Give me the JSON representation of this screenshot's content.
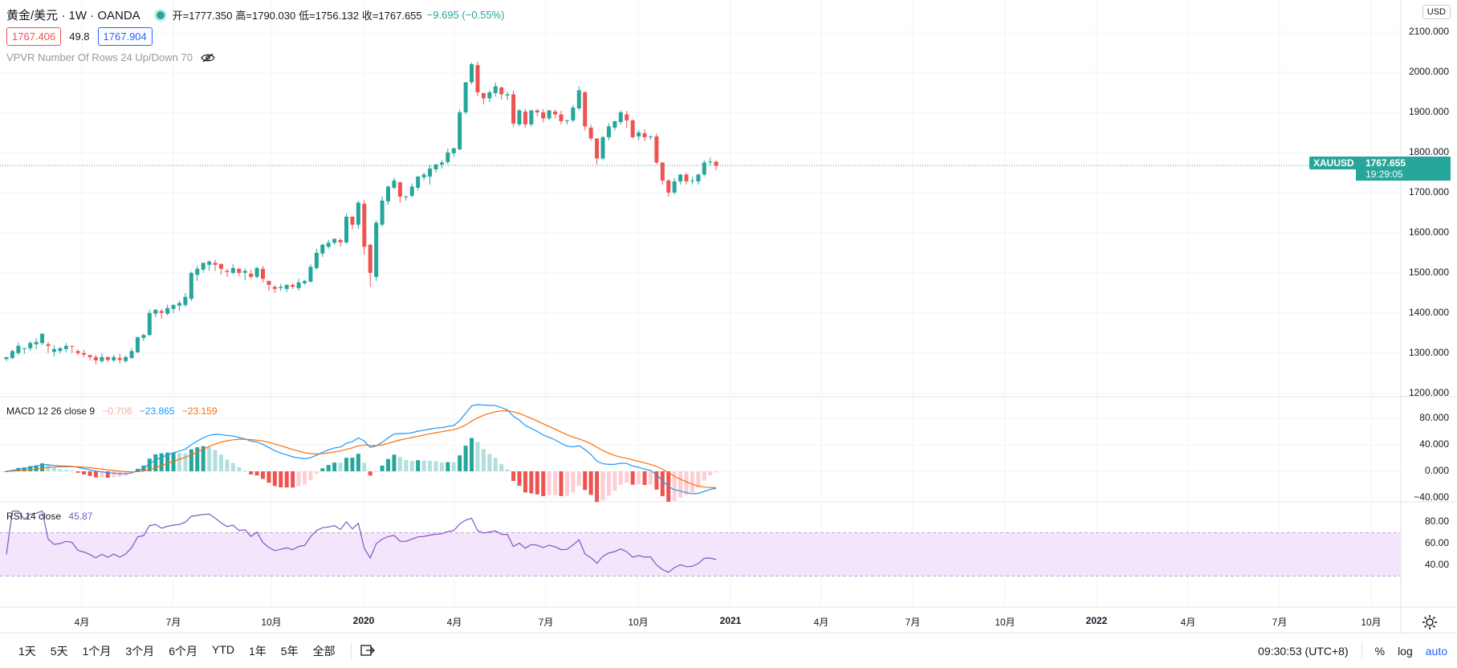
{
  "header": {
    "symbol": "黄金/美元 · 1W · OANDA",
    "open": "开=1777.350",
    "high": "高=1790.030",
    "low": "低=1756.132",
    "close": "收=1767.655",
    "change": "−9.695 (−0.55%)"
  },
  "bid_ask": {
    "bid": "1767.406",
    "spread": "49.8",
    "ask": "1767.904"
  },
  "vpvr_label": "VPVR Number Of Rows 24 Up/Down 70",
  "currency_button": "USD",
  "price_tag": {
    "symbol": "XAUUSD",
    "price": "1767.655",
    "countdown": "19:29:05"
  },
  "price_axis": [
    "2100.000",
    "2000.000",
    "1900.000",
    "1800.000",
    "1700.000",
    "1600.000",
    "1500.000",
    "1400.000",
    "1300.000",
    "1200.000"
  ],
  "macd": {
    "label": "MACD 12 26 close 9",
    "hist": "−0.706",
    "macd": "−23.865",
    "signal": "−23.159",
    "axis": [
      "80.000",
      "40.000",
      "0.000",
      "−40.000"
    ]
  },
  "rsi": {
    "label": "RSI 14 close",
    "value": "45.87",
    "axis": [
      "80.00",
      "60.00",
      "40.00"
    ]
  },
  "time_axis": [
    {
      "t": "4月",
      "year": false
    },
    {
      "t": "7月",
      "year": false
    },
    {
      "t": "10月",
      "year": false
    },
    {
      "t": "2020",
      "year": true
    },
    {
      "t": "4月",
      "year": false
    },
    {
      "t": "7月",
      "year": false
    },
    {
      "t": "10月",
      "year": false
    },
    {
      "t": "2021",
      "year": true
    },
    {
      "t": "4月",
      "year": false
    },
    {
      "t": "7月",
      "year": false
    },
    {
      "t": "10月",
      "year": false
    },
    {
      "t": "2022",
      "year": true
    },
    {
      "t": "4月",
      "year": false
    },
    {
      "t": "7月",
      "year": false
    },
    {
      "t": "10月",
      "year": false
    }
  ],
  "timeframes": [
    "1天",
    "5天",
    "1个月",
    "3个月",
    "6个月",
    "YTD",
    "1年",
    "5年",
    "全部"
  ],
  "bottom_right": {
    "clock": "09:30:53 (UTC+8)",
    "percent": "%",
    "log": "log",
    "auto": "auto"
  },
  "colors": {
    "up": "#26a69a",
    "down": "#ef5350",
    "macd_line": "#2196f3",
    "signal_line": "#ff6d00",
    "rsi_line": "#7e57c2",
    "rsi_band": "#f3e5fc"
  },
  "chart_data": {
    "type": "candlestick",
    "interval": "1W",
    "candles_ohc": [
      [
        1285,
        1290,
        1280
      ],
      [
        1288,
        1305,
        1284
      ],
      [
        1300,
        1318,
        1295
      ],
      [
        1310,
        1312,
        1298
      ],
      [
        1312,
        1325,
        1305
      ],
      [
        1322,
        1328,
        1310
      ],
      [
        1325,
        1348,
        1320
      ],
      [
        1322,
        1318,
        1300
      ],
      [
        1303,
        1310,
        1292
      ],
      [
        1305,
        1312,
        1300
      ],
      [
        1310,
        1318,
        1302
      ],
      [
        1318,
        1316,
        1300
      ],
      [
        1305,
        1300,
        1295
      ],
      [
        1300,
        1296,
        1290
      ],
      [
        1295,
        1290,
        1282
      ],
      [
        1290,
        1282,
        1272
      ],
      [
        1280,
        1290,
        1275
      ],
      [
        1290,
        1283,
        1278
      ],
      [
        1282,
        1290,
        1278
      ],
      [
        1288,
        1283,
        1274
      ],
      [
        1280,
        1290,
        1276
      ],
      [
        1288,
        1305,
        1285
      ],
      [
        1302,
        1340,
        1300
      ],
      [
        1338,
        1345,
        1330
      ],
      [
        1345,
        1400,
        1342
      ],
      [
        1398,
        1408,
        1390
      ],
      [
        1405,
        1400,
        1385
      ],
      [
        1398,
        1412,
        1394
      ],
      [
        1410,
        1420,
        1400
      ],
      [
        1418,
        1425,
        1405
      ],
      [
        1420,
        1440,
        1415
      ],
      [
        1435,
        1500,
        1430
      ],
      [
        1495,
        1510,
        1480
      ],
      [
        1508,
        1525,
        1500
      ],
      [
        1520,
        1528,
        1505
      ],
      [
        1525,
        1520,
        1505
      ],
      [
        1522,
        1510,
        1495
      ],
      [
        1505,
        1502,
        1490
      ],
      [
        1500,
        1512,
        1496
      ],
      [
        1510,
        1500,
        1492
      ],
      [
        1500,
        1505,
        1482
      ],
      [
        1498,
        1490,
        1485
      ],
      [
        1490,
        1512,
        1486
      ],
      [
        1510,
        1485,
        1475
      ],
      [
        1480,
        1470,
        1455
      ],
      [
        1465,
        1460,
        1450
      ],
      [
        1462,
        1465,
        1455
      ],
      [
        1460,
        1470,
        1452
      ],
      [
        1470,
        1465,
        1460
      ],
      [
        1462,
        1476,
        1456
      ],
      [
        1474,
        1480,
        1470
      ],
      [
        1478,
        1515,
        1475
      ],
      [
        1512,
        1550,
        1508
      ],
      [
        1548,
        1570,
        1540
      ],
      [
        1565,
        1575,
        1560
      ],
      [
        1575,
        1585,
        1570
      ],
      [
        1582,
        1576,
        1565
      ],
      [
        1576,
        1640,
        1572
      ],
      [
        1640,
        1620,
        1608
      ],
      [
        1620,
        1675,
        1610
      ],
      [
        1672,
        1565,
        1545
      ],
      [
        1570,
        1500,
        1465
      ],
      [
        1490,
        1625,
        1480
      ],
      [
        1620,
        1680,
        1615
      ],
      [
        1678,
        1715,
        1670
      ],
      [
        1712,
        1730,
        1708
      ],
      [
        1726,
        1690,
        1675
      ],
      [
        1690,
        1690,
        1680
      ],
      [
        1692,
        1715,
        1688
      ],
      [
        1712,
        1740,
        1705
      ],
      [
        1738,
        1745,
        1730
      ],
      [
        1740,
        1760,
        1720
      ],
      [
        1758,
        1770,
        1750
      ],
      [
        1770,
        1775,
        1760
      ],
      [
        1776,
        1800,
        1770
      ],
      [
        1798,
        1810,
        1790
      ],
      [
        1808,
        1900,
        1805
      ],
      [
        1900,
        1975,
        1895
      ],
      [
        1975,
        2020,
        1970
      ],
      [
        2018,
        1950,
        1940
      ],
      [
        1948,
        1935,
        1920
      ],
      [
        1935,
        1950,
        1925
      ],
      [
        1948,
        1965,
        1940
      ],
      [
        1962,
        1945,
        1932
      ],
      [
        1942,
        1945,
        1930
      ],
      [
        1945,
        1872,
        1865
      ],
      [
        1870,
        1905,
        1865
      ],
      [
        1902,
        1870,
        1862
      ],
      [
        1870,
        1905,
        1865
      ],
      [
        1905,
        1900,
        1890
      ],
      [
        1900,
        1885,
        1875
      ],
      [
        1885,
        1905,
        1880
      ],
      [
        1902,
        1895,
        1885
      ],
      [
        1895,
        1878,
        1870
      ],
      [
        1878,
        1880,
        1870
      ],
      [
        1880,
        1912,
        1875
      ],
      [
        1910,
        1955,
        1905
      ],
      [
        1950,
        1865,
        1855
      ],
      [
        1862,
        1835,
        1830
      ],
      [
        1835,
        1785,
        1770
      ],
      [
        1785,
        1838,
        1780
      ],
      [
        1838,
        1865,
        1830
      ],
      [
        1862,
        1878,
        1855
      ],
      [
        1876,
        1900,
        1870
      ],
      [
        1895,
        1880,
        1860
      ],
      [
        1880,
        1838,
        1835
      ],
      [
        1840,
        1850,
        1830
      ],
      [
        1848,
        1838,
        1828
      ],
      [
        1838,
        1840,
        1832
      ],
      [
        1840,
        1775,
        1770
      ],
      [
        1775,
        1730,
        1720
      ],
      [
        1730,
        1700,
        1690
      ],
      [
        1700,
        1728,
        1695
      ],
      [
        1728,
        1745,
        1720
      ],
      [
        1745,
        1728,
        1720
      ],
      [
        1728,
        1730,
        1720
      ],
      [
        1728,
        1745,
        1720
      ],
      [
        1745,
        1775,
        1740
      ],
      [
        1775,
        1777,
        1768
      ],
      [
        1777,
        1767,
        1756
      ]
    ]
  }
}
